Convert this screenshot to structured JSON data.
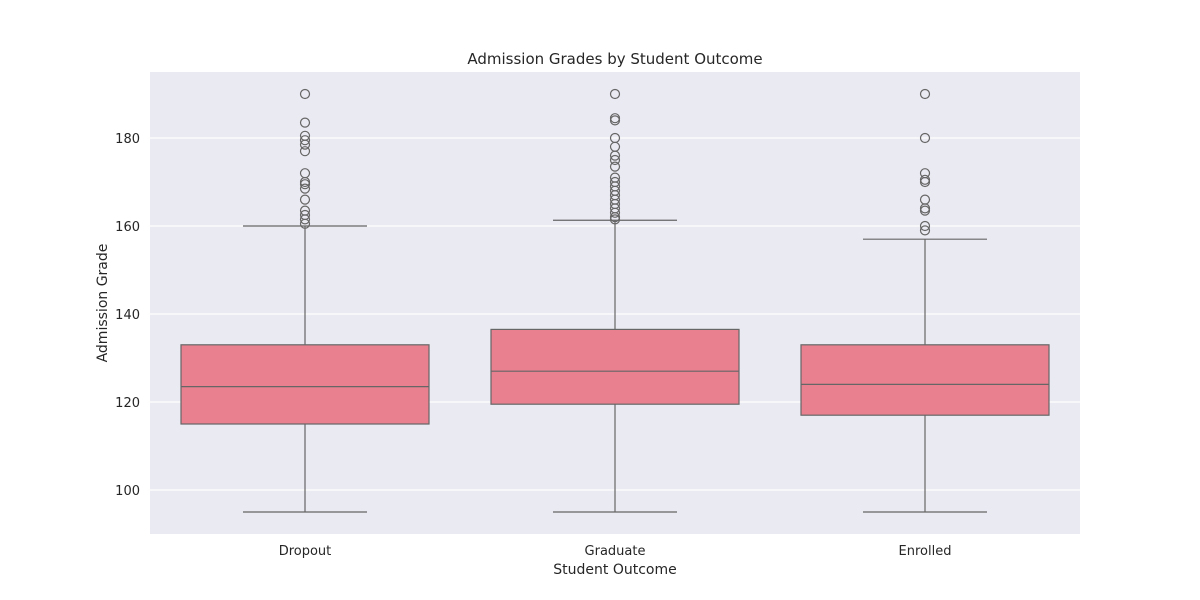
{
  "chart_data": {
    "type": "box",
    "title": "Admission Grades by Student Outcome",
    "xlabel": "Student Outcome",
    "ylabel": "Admission Grade",
    "categories": [
      "Dropout",
      "Graduate",
      "Enrolled"
    ],
    "ylim": [
      90,
      195
    ],
    "yticks": [
      100,
      120,
      140,
      160,
      180
    ],
    "grid": true,
    "legend": "none",
    "colors": {
      "box_fill": "#e8808f",
      "box_edge": "#666666",
      "plot_bg": "#eaeaf2",
      "grid": "#ffffff"
    },
    "boxes": [
      {
        "category": "Dropout",
        "whisker_low": 95,
        "q1": 115,
        "median": 123.5,
        "q3": 133,
        "whisker_high": 160,
        "outliers": [
          160.5,
          161.5,
          162.5,
          163.5,
          166,
          168.5,
          169.5,
          170,
          172,
          177,
          178.5,
          179.5,
          180.5,
          183.5,
          190
        ]
      },
      {
        "category": "Graduate",
        "whisker_low": 95,
        "q1": 119.5,
        "median": 127,
        "q3": 136.5,
        "whisker_high": 161.3,
        "outliers": [
          161.5,
          162,
          163,
          164,
          165,
          166,
          167,
          168,
          169,
          170,
          171,
          173.5,
          175,
          176,
          178,
          180,
          184,
          184.5,
          190
        ]
      },
      {
        "category": "Enrolled",
        "whisker_low": 95,
        "q1": 117,
        "median": 124,
        "q3": 133,
        "whisker_high": 157,
        "outliers": [
          159,
          160,
          163.5,
          164,
          166,
          170,
          170.5,
          172,
          180,
          190
        ]
      }
    ]
  }
}
